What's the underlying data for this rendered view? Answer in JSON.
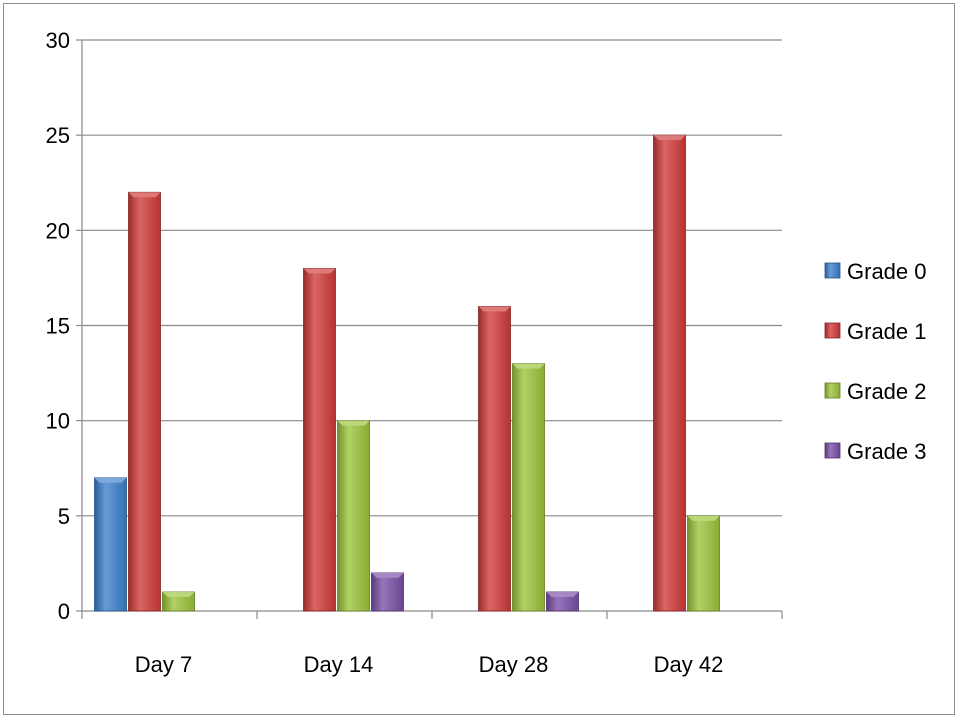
{
  "chart_data": {
    "type": "bar",
    "categories": [
      "Day 7",
      "Day 14",
      "Day 28",
      "Day 42"
    ],
    "series": [
      {
        "name": "Grade 0",
        "color": "#3b7fcc",
        "values": [
          7,
          0,
          0,
          0
        ]
      },
      {
        "name": "Grade 1",
        "color": "#cf3a38",
        "values": [
          22,
          18,
          16,
          25
        ]
      },
      {
        "name": "Grade 2",
        "color": "#9cc43a",
        "values": [
          1,
          10,
          13,
          5
        ]
      },
      {
        "name": "Grade 3",
        "color": "#7a4ea6",
        "values": [
          0,
          2,
          1,
          0
        ]
      }
    ],
    "ylim": [
      0,
      30
    ],
    "yticks": [
      0,
      5,
      10,
      15,
      20,
      25,
      30
    ],
    "grid": true,
    "legend": "right"
  }
}
